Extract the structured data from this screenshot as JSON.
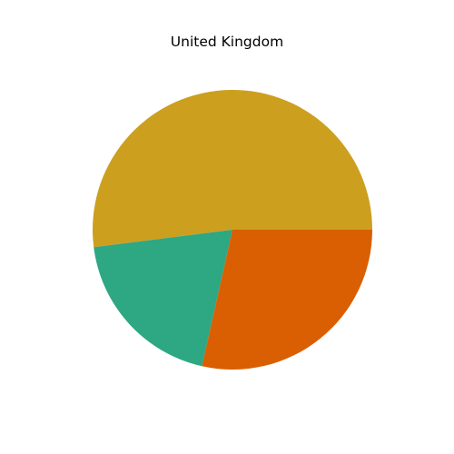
{
  "chart_data": {
    "type": "pie",
    "title": "United Kingdom",
    "slices": [
      {
        "value": 52.0,
        "color": "#CC9F1F"
      },
      {
        "value": 19.5,
        "color": "#2EA783"
      },
      {
        "value": 28.5,
        "color": "#D95F02"
      }
    ],
    "start_angle_deg": 0,
    "direction": "counterclockwise",
    "legend": "none"
  }
}
